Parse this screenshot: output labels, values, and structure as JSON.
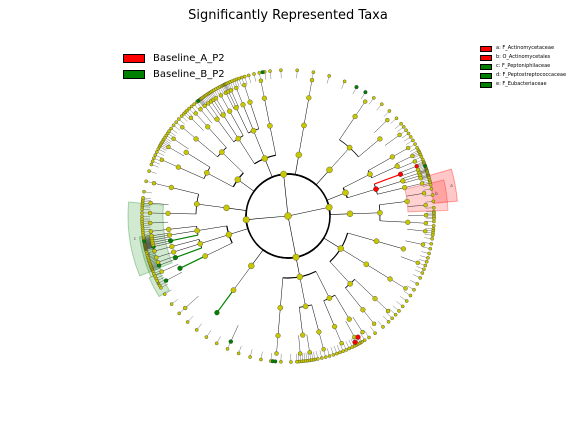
{
  "title": "Significantly Represented Taxa",
  "groups": [
    {
      "name": "Baseline_A_P2",
      "color": "#ff0000"
    },
    {
      "name": "Baseline_B_P2",
      "color": "#008000"
    }
  ],
  "clade_legend": [
    {
      "label": "a: F_Actinomycetaceae",
      "color": "#ff0000"
    },
    {
      "label": "b: O_Actinomycetales",
      "color": "#ff0000"
    },
    {
      "label": "c: F_Peptoniphilaceae",
      "color": "#008000"
    },
    {
      "label": "d: F_Peptostreptococcaceae",
      "color": "#008000"
    },
    {
      "label": "e: F_Eubacteriaceae",
      "color": "#008000"
    }
  ],
  "clade_markers": [
    {
      "letter": "a",
      "color": "#ff0000"
    },
    {
      "letter": "b",
      "color": "#ff0000"
    },
    {
      "letter": "c",
      "color": "#008000"
    },
    {
      "letter": "d",
      "color": "#008000"
    },
    {
      "letter": "e",
      "color": "#008000"
    }
  ],
  "node_colors": {
    "neutral": "#c8c800",
    "enriched_a": "#ff0000",
    "enriched_b": "#008000"
  }
}
